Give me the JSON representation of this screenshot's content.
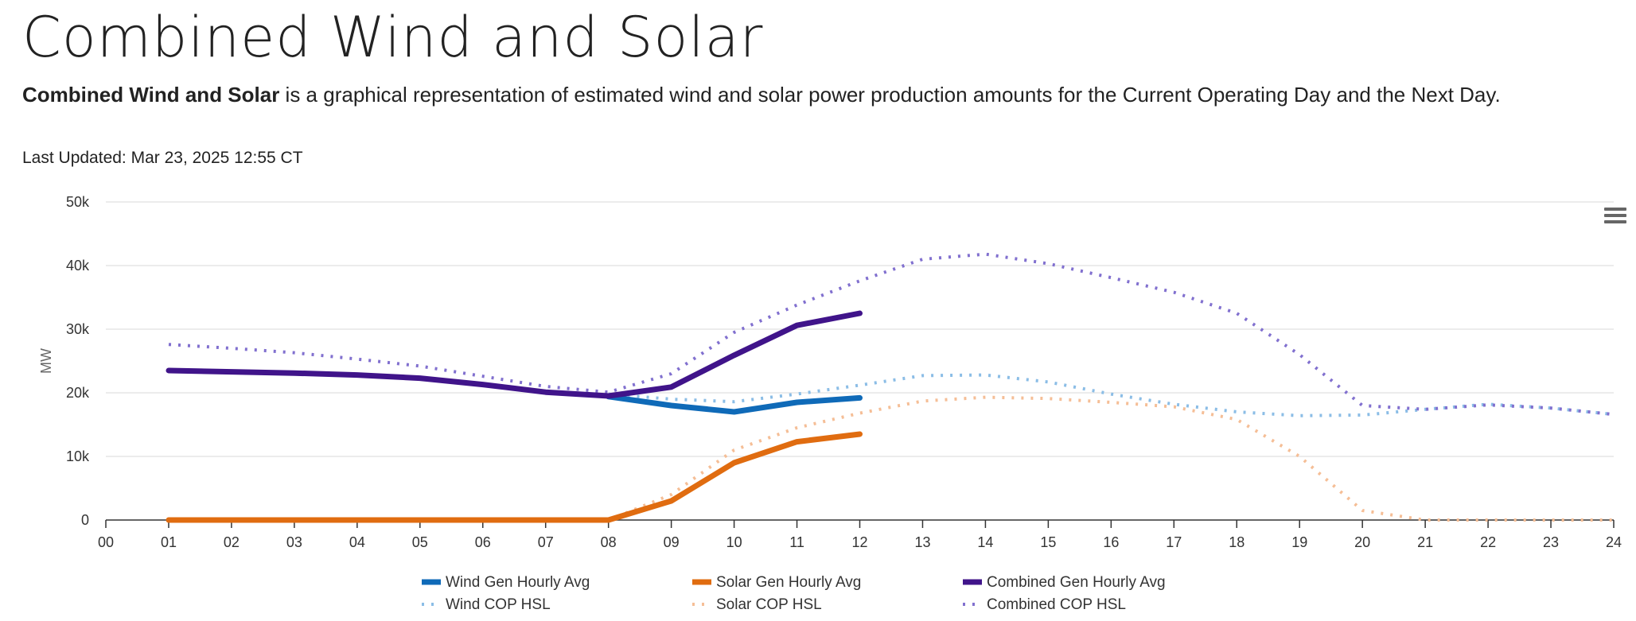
{
  "page": {
    "title": "Combined Wind and Solar",
    "intro_bold": "Combined Wind and Solar",
    "intro_rest": " is a graphical representation of estimated wind and solar power production amounts for the Current Operating Day and the Next Day.",
    "last_updated": "Last Updated: Mar 23, 2025 12:55 CT",
    "menu_icon": "hamburger-menu-icon"
  },
  "chart_data": {
    "type": "line",
    "title": "",
    "xlabel": "",
    "ylabel": "MW",
    "x_ticks": [
      "00",
      "01",
      "02",
      "03",
      "04",
      "05",
      "06",
      "07",
      "08",
      "09",
      "10",
      "11",
      "12",
      "13",
      "14",
      "15",
      "16",
      "17",
      "18",
      "19",
      "20",
      "21",
      "22",
      "23",
      "24"
    ],
    "xlim": [
      0,
      24
    ],
    "y_ticks": [
      "0",
      "10k",
      "20k",
      "30k",
      "40k",
      "50k"
    ],
    "ylim": [
      0,
      50000
    ],
    "grid": true,
    "legend_position": "bottom",
    "series": [
      {
        "name": "Wind Gen Hourly Avg",
        "style": "solid",
        "color": "#0f6ab8",
        "x": [
          8,
          9,
          10,
          11,
          12
        ],
        "y": [
          19400,
          18000,
          17000,
          18500,
          19200
        ]
      },
      {
        "name": "Solar Gen Hourly Avg",
        "style": "solid",
        "color": "#e06c10",
        "x": [
          1,
          2,
          3,
          4,
          5,
          6,
          7,
          8,
          9,
          10,
          11,
          12
        ],
        "y": [
          0,
          0,
          0,
          0,
          0,
          0,
          0,
          0,
          3000,
          9000,
          12300,
          13500
        ]
      },
      {
        "name": "Combined Gen Hourly Avg",
        "style": "solid",
        "color": "#40148a",
        "x": [
          1,
          2,
          3,
          4,
          5,
          6,
          7,
          8,
          9,
          10,
          11,
          12
        ],
        "y": [
          23500,
          23300,
          23100,
          22800,
          22300,
          21300,
          20100,
          19500,
          20900,
          25900,
          30600,
          32500
        ]
      },
      {
        "name": "Wind COP HSL",
        "style": "dotted",
        "color": "#8bbde6",
        "x": [
          8,
          9,
          10,
          11,
          12,
          13,
          14,
          15,
          16,
          17,
          18,
          19,
          20,
          21,
          22,
          23,
          24
        ],
        "y": [
          19800,
          19000,
          18600,
          19800,
          21200,
          22700,
          22800,
          21700,
          19800,
          18200,
          17000,
          16400,
          16500,
          17400,
          18200,
          17600,
          16600
        ]
      },
      {
        "name": "Solar COP HSL",
        "style": "dotted",
        "color": "#f5be96",
        "x": [
          1,
          2,
          3,
          4,
          5,
          6,
          7,
          8,
          9,
          10,
          11,
          12,
          13,
          14,
          15,
          16,
          17,
          18,
          19,
          20,
          21,
          22,
          23,
          24
        ],
        "y": [
          0,
          0,
          0,
          0,
          0,
          0,
          0,
          0,
          4000,
          11000,
          14500,
          16800,
          18700,
          19300,
          19100,
          18500,
          17800,
          15800,
          10000,
          1500,
          0,
          0,
          0,
          0
        ]
      },
      {
        "name": "Combined COP HSL",
        "style": "dotted",
        "color": "#8170cf",
        "x": [
          1,
          2,
          3,
          4,
          5,
          6,
          7,
          8,
          9,
          10,
          11,
          12,
          13,
          14,
          15,
          16,
          17,
          18,
          19,
          20,
          21,
          22,
          23,
          24
        ],
        "y": [
          27600,
          27000,
          26300,
          25300,
          24200,
          22600,
          21000,
          20100,
          23000,
          29500,
          33800,
          37600,
          41000,
          41800,
          40300,
          38100,
          35800,
          32500,
          26000,
          18000,
          17400,
          18100,
          17600,
          16600
        ]
      }
    ]
  }
}
